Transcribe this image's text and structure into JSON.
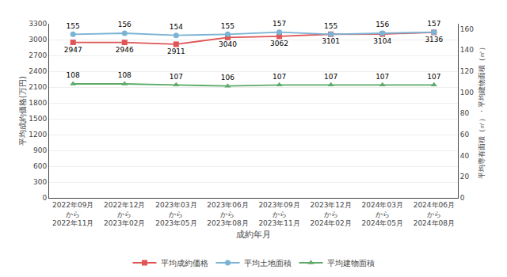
{
  "chart_data": {
    "type": "line",
    "xlabel": "成約年月",
    "ylabel": "平均成約価格(万円)",
    "y2label": "平均専有面積（㎡）・平均建物面積（㎡）",
    "categories": [
      "2022年09月\nから\n2022年11月",
      "2022年12月\nから\n2023年02月",
      "2023年03月\nから\n2023年05月",
      "2023年06月\nから\n2023年08月",
      "2023年09月\nから\n2023年11月",
      "2023年12月\nから\n2024年02月",
      "2024年03月\nから\n2024年05月",
      "2024年06月\nから\n2024年08月"
    ],
    "series": [
      {
        "name": "平均成約価格",
        "color": "#e05555",
        "marker": "square",
        "values": [
          2947,
          2946,
          2911,
          3040,
          3062,
          3101,
          3104,
          3136
        ]
      },
      {
        "name": "平均土地面積",
        "color": "#7ab3d4",
        "marker": "circle",
        "axis": "y2",
        "values": [
          155,
          156,
          154,
          155,
          157,
          155,
          156,
          157
        ]
      },
      {
        "name": "平均建物面積",
        "color": "#5dab68",
        "marker": "triangle",
        "axis": "y2",
        "values": [
          108,
          108,
          107,
          106,
          107,
          107,
          107,
          107
        ]
      }
    ],
    "ylim": [
      0,
      3300
    ],
    "yticks": [
      0,
      300,
      600,
      900,
      1200,
      1500,
      1800,
      2100,
      2400,
      2700,
      3000,
      3300
    ],
    "y2lim": [
      0,
      165
    ],
    "y2ticks": [
      0,
      20,
      40,
      60,
      80,
      100,
      120,
      140,
      160
    ],
    "grid": true,
    "data_labels": true,
    "legend": "bottom"
  }
}
